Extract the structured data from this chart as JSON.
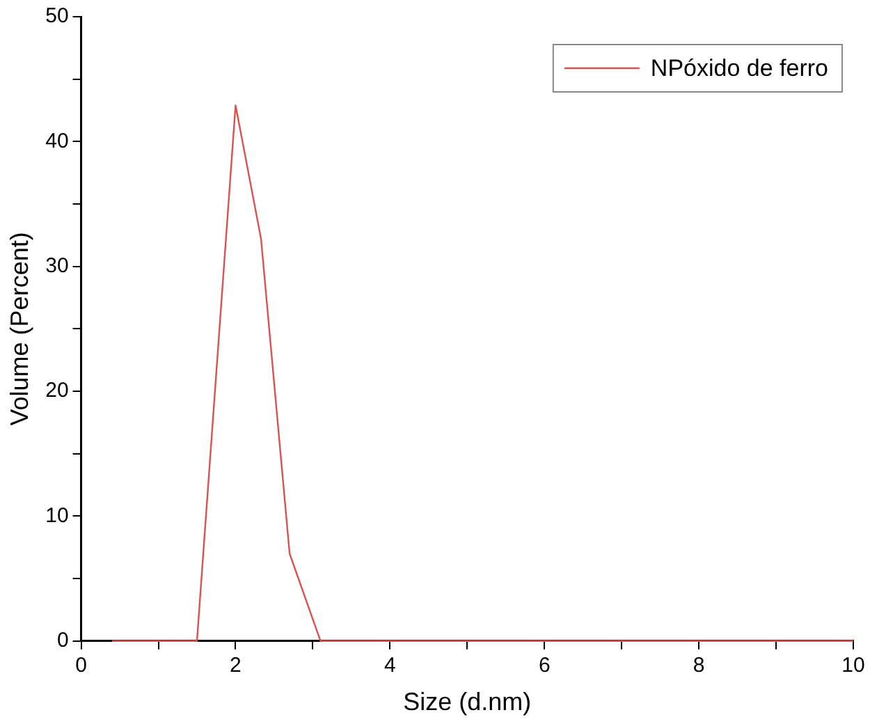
{
  "chart_data": {
    "type": "line",
    "xlabel": "Size (d.nm)",
    "ylabel": "Volume (Percent)",
    "x": [
      0.4,
      1.5,
      2.0,
      2.33,
      2.7,
      3.1,
      10
    ],
    "series": [
      {
        "name": "NPóxido de ferro",
        "color": "#d9534f",
        "values": [
          0,
          0,
          42.9,
          32.2,
          7.0,
          0,
          0
        ]
      }
    ],
    "xlim": [
      0,
      10
    ],
    "xticks": [
      0,
      {
        "value": 1,
        "label": null
      },
      2,
      {
        "value": 3,
        "label": null
      },
      4,
      {
        "value": 5,
        "label": null
      },
      6,
      {
        "value": 7,
        "label": null
      },
      8,
      {
        "value": 9,
        "label": null
      },
      10
    ],
    "ylim": [
      0,
      50
    ],
    "yticks": [
      0,
      {
        "value": 5,
        "label": null
      },
      10,
      {
        "value": 15,
        "label": null
      },
      20,
      {
        "value": 25,
        "label": null
      },
      30,
      {
        "value": 35,
        "label": null
      },
      40,
      {
        "value": 45,
        "label": null
      },
      50
    ],
    "grid": false,
    "legend": "top right",
    "marker": "none",
    "line_style": "solid"
  }
}
